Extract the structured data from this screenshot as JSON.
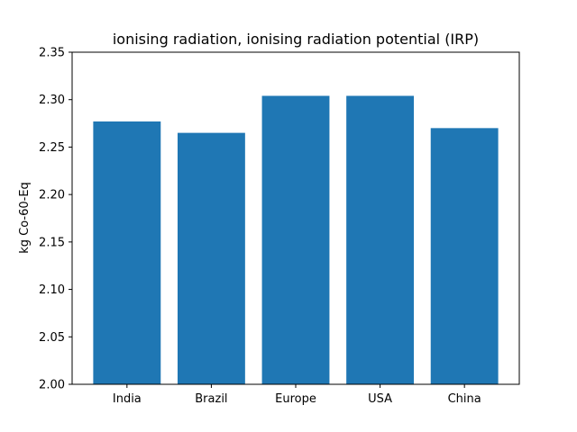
{
  "chart_data": {
    "type": "bar",
    "title": "ionising radiation, ionising radiation potential (IRP)",
    "xlabel": "",
    "ylabel": "kg Co-60-Eq",
    "categories": [
      "India",
      "Brazil",
      "Europe",
      "USA",
      "China"
    ],
    "values": [
      2.277,
      2.265,
      2.304,
      2.304,
      2.27
    ],
    "ylim": [
      2.0,
      2.35
    ],
    "yticks": [
      "2.00",
      "2.05",
      "2.10",
      "2.15",
      "2.20",
      "2.25",
      "2.30",
      "2.35"
    ],
    "bar_color": "#1f77b4",
    "grid": false
  }
}
